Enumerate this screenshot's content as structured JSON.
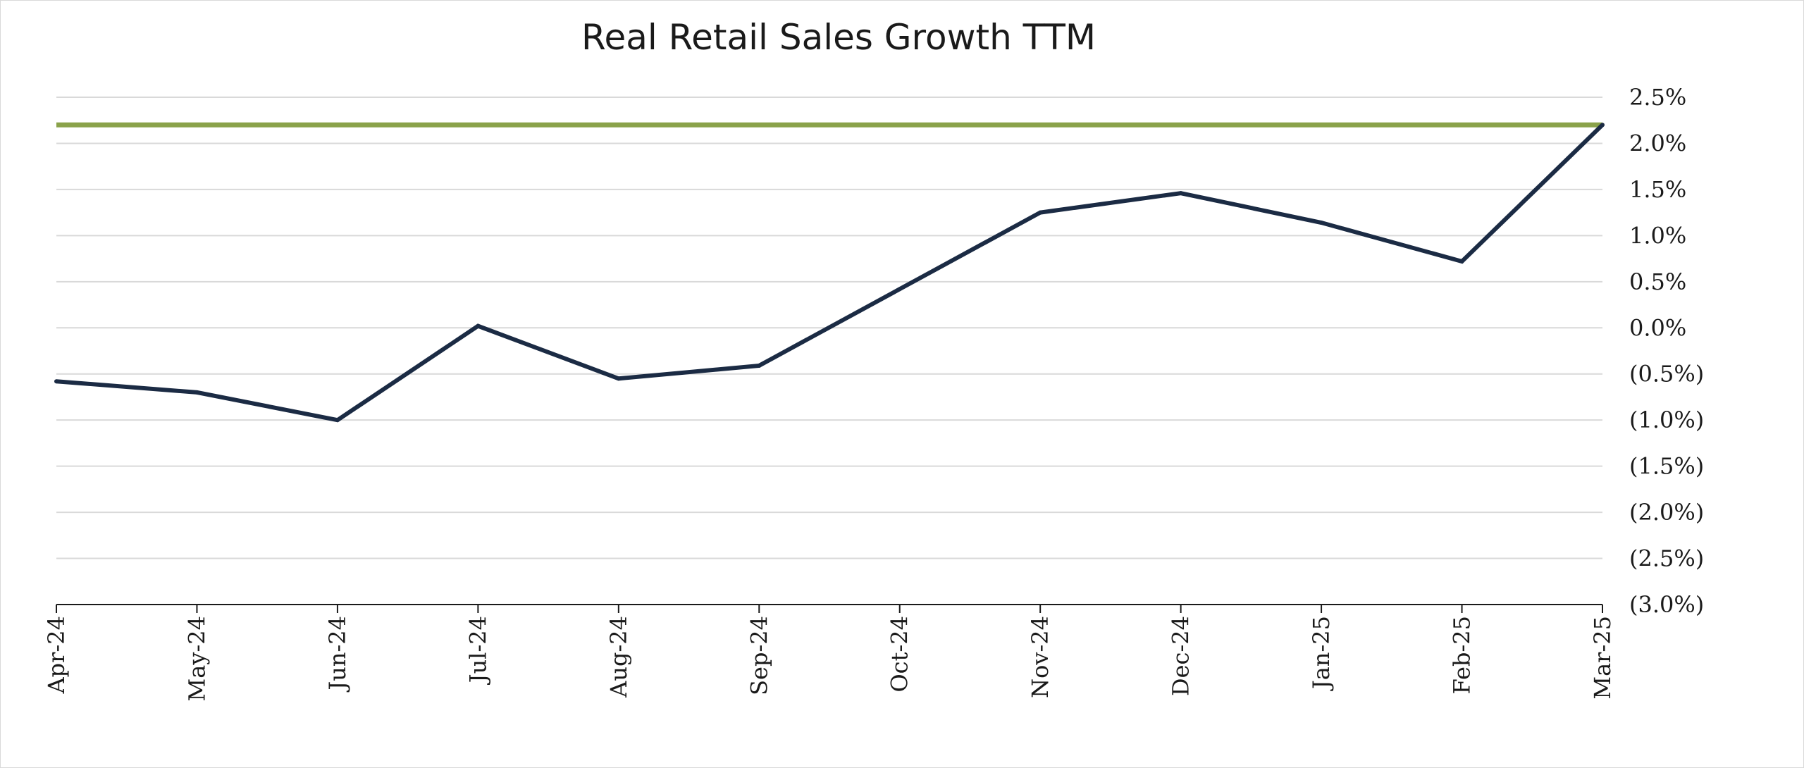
{
  "chart_data": {
    "type": "line",
    "title": "Real Retail Sales Growth TTM",
    "xlabel": "",
    "ylabel": "",
    "categories": [
      "Apr-24",
      "May-24",
      "Jun-24",
      "Jul-24",
      "Aug-24",
      "Sep-24",
      "Oct-24",
      "Nov-24",
      "Dec-24",
      "Jan-25",
      "Feb-25",
      "Mar-25"
    ],
    "series": [
      {
        "name": "Real Retail Sales Growth TTM",
        "color": "#1b2b44",
        "values": [
          -0.58,
          -0.7,
          -1.0,
          0.02,
          -0.55,
          -0.41,
          0.42,
          1.25,
          1.46,
          1.14,
          0.72,
          2.2
        ]
      }
    ],
    "reference_line": {
      "value": 2.2,
      "color": "#8aa24a"
    },
    "ylim": [
      -3.0,
      2.5
    ],
    "yticks": [
      2.5,
      2.0,
      1.5,
      1.0,
      0.5,
      0.0,
      -0.5,
      -1.0,
      -1.5,
      -2.0,
      -2.5,
      -3.0
    ],
    "ytick_labels": [
      "2.5%",
      "2.0%",
      "1.5%",
      "1.0%",
      "0.5%",
      "0.0%",
      "(0.5%)",
      "(1.0%)",
      "(1.5%)",
      "(2.0%)",
      "(2.5%)",
      "(3.0%)"
    ],
    "grid": true,
    "y_axis_position": "right",
    "gridline_color": "#d9d9d9"
  }
}
